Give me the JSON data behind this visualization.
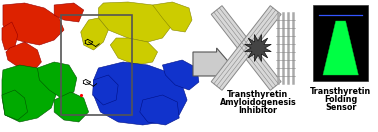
{
  "arrow_label1_line1": "Transthyretin",
  "arrow_label1_line2": "Amyloidogenesis",
  "arrow_label1_line3": "Inhibitor",
  "arrow_label2_line1": "Transthyretin",
  "arrow_label2_line2": "Folding",
  "arrow_label2_line3": "Sensor",
  "label_fontsize": 5.8,
  "label_fontweight": "bold",
  "protein_red": "#dd2200",
  "protein_yellow": "#cccc00",
  "protein_green": "#00aa00",
  "protein_blue": "#1133cc",
  "box_edge_color": "#555555",
  "arrow_face": "#cccccc",
  "arrow_edge": "#555555",
  "fibril_color": "#aaaaaa",
  "star_color": "#444444",
  "sensor_bg": "#000000",
  "cone_color": "#00ff44",
  "blue_line_color": "#3355ff"
}
